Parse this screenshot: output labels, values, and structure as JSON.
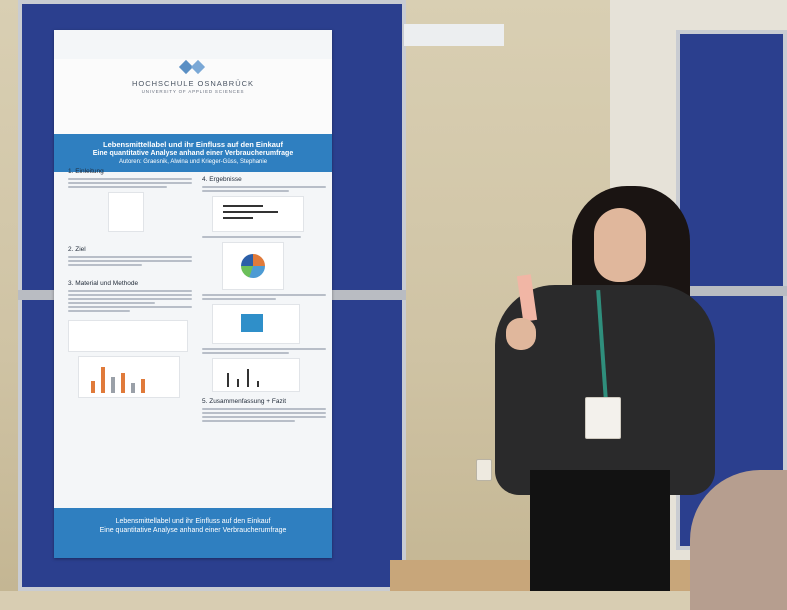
{
  "poster": {
    "university": "HOCHSCHULE OSNABRÜCK",
    "university_sub": "UNIVERSITY OF APPLIED SCIENCES",
    "title_line1": "Lebensmittellabel und ihr Einfluss auf den Einkauf",
    "title_line2": "Eine quantitative Analyse anhand einer Verbraucherumfrage",
    "authors": "Autoren: Graesnik, Alwina und Krieger-Güss, Stephanie",
    "sections": [
      {
        "label": "1. Einleitung"
      },
      {
        "label": "2. Ziel"
      },
      {
        "label": "3. Material und Methode"
      },
      {
        "label": "4. Ergebnisse"
      },
      {
        "label": "5. Zusammenfassung + Fazit"
      }
    ],
    "footer_line1": "Lebensmittellabel und ihr Einfluss auf den Einkauf",
    "footer_line2": "Eine quantitative Analyse anhand einer Verbraucherumfrage"
  },
  "colors": {
    "board_blue": "#2b3f8e",
    "poster_band": "#2f7fc0",
    "lanyard": "#2f8e7c"
  }
}
